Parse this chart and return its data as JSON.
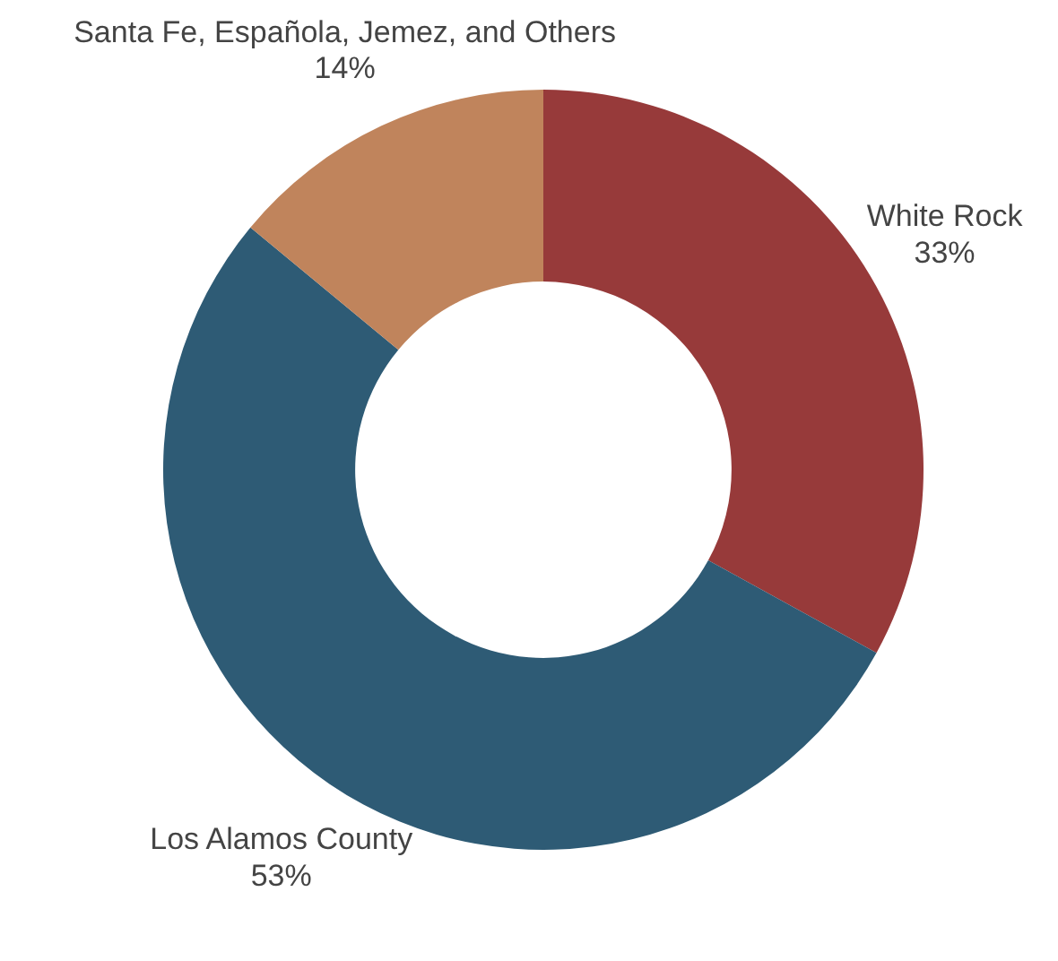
{
  "chart_data": {
    "type": "donut",
    "categories": [
      "White Rock",
      "Los Alamos County",
      "Santa Fe, Española, Jemez, and Others"
    ],
    "values": [
      33,
      53,
      14
    ],
    "colors": [
      "#973a3a",
      "#2e5b75",
      "#c0845c"
    ],
    "value_labels": [
      "33%",
      "53%",
      "14%"
    ],
    "legend": false
  }
}
